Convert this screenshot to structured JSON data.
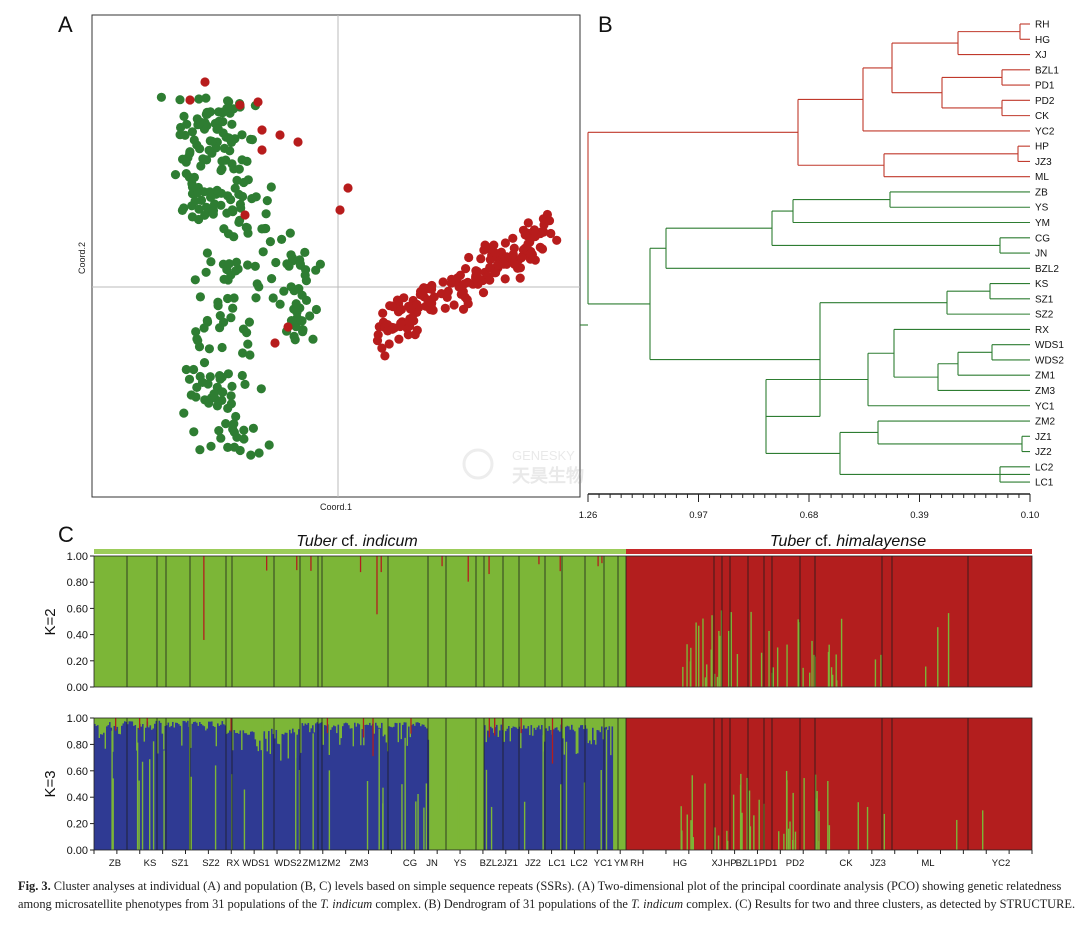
{
  "panels": {
    "a": "A",
    "b": "B",
    "c": "C"
  },
  "colors": {
    "green_scatter": "#2e7d32",
    "red_scatter": "#b71c1c",
    "dendro_red": "#c0392b",
    "dendro_green": "#2e7d32",
    "bar_green": "#7cb637",
    "bar_red": "#b31e1e",
    "bar_blue": "#2f3a93"
  },
  "pcoa": {
    "xlabel": "Coord.1",
    "ylabel": "Coord.2",
    "watermark_brand": "GENESKY",
    "watermark_cn": "天昊生物"
  },
  "dendrogram": {
    "axis_ticks": [
      "1.26",
      "0.97",
      "0.68",
      "0.39",
      "0.10"
    ],
    "leaves": [
      "RH",
      "HG",
      "XJ",
      "BZL1",
      "PD1",
      "PD2",
      "CK",
      "YC2",
      "HP",
      "JZ3",
      "ML",
      "ZB",
      "YS",
      "YM",
      "CG",
      "JN",
      "BZL2",
      "KS",
      "SZ1",
      "SZ2",
      "RX",
      "WDS1",
      "WDS2",
      "ZM1",
      "ZM3",
      "YC1",
      "ZM2",
      "JZ1",
      "JZ2",
      "LC2",
      "LC1"
    ]
  },
  "structure": {
    "group_left_prefix": "Tuber",
    "group_left_rest": " cf. ",
    "group_left_species": "indicum",
    "group_right_prefix": "Tuber",
    "group_right_rest": " cf. ",
    "group_right_species": "himalayense",
    "k2_label": "K=2",
    "k3_label": "K=3",
    "yticks": [
      "1.00",
      "0.80",
      "0.60",
      "0.40",
      "0.20",
      "0.00"
    ],
    "populations_left": [
      "ZB",
      "KS",
      "SZ1",
      "SZ2",
      "RX",
      "WDS1",
      "WDS2",
      "ZM1",
      "ZM2",
      "ZM3",
      "CG",
      "JN",
      "YS",
      "BZL2",
      "JZ1",
      "JZ2",
      "LC1",
      "LC2",
      "YC1",
      "YM"
    ],
    "populations_right": [
      "RH",
      "HG",
      "XJ",
      "HP",
      "BZL1",
      "PD1",
      "PD2",
      "CK",
      "JZ3",
      "ML",
      "YC2"
    ]
  },
  "caption": {
    "fig": "Fig. 3.",
    "text1": " Cluster analyses at individual (A) and population (B, C) levels based on simple sequence repeats (SSRs). (A) Two-dimensional plot of the principal coordinate analysis (PCO) showing genetic relatedness among microsatellite phenotypes from 31 populations of the ",
    "species1": "T. indicum",
    "text2": " complex. (B) Dendrogram of 31 populations of the ",
    "species2": "T. indicum",
    "text3": " complex. (C) Results for two and three clusters, as detected by STRUCTURE."
  }
}
